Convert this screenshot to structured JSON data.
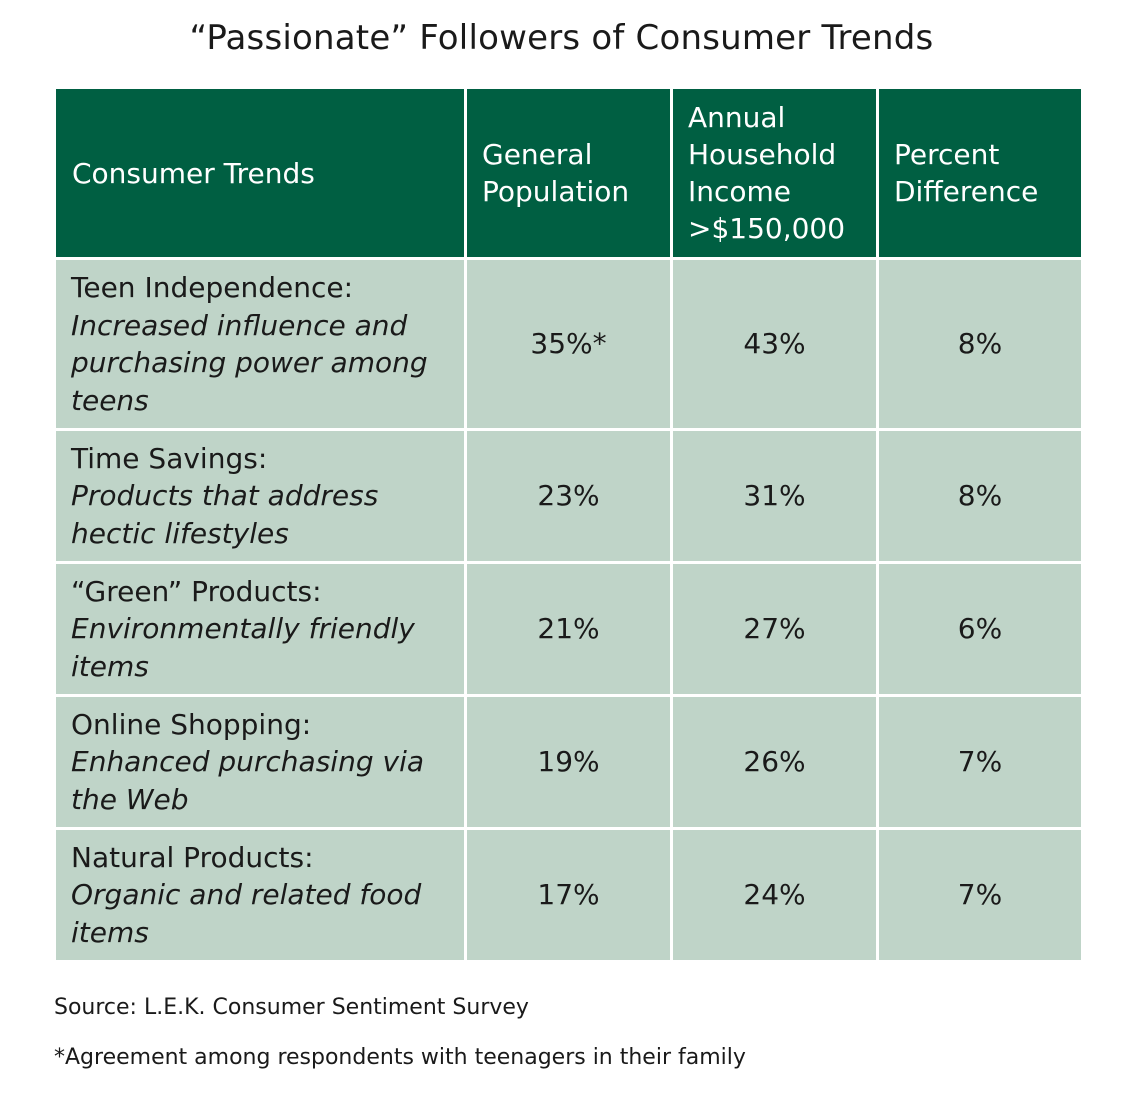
{
  "title": "“Passionate” Followers of Consumer Trends",
  "table": {
    "headers": [
      "Consumer Trends",
      "General Population",
      "Annual Household Income >$150,000",
      "Percent Difference"
    ],
    "rows": [
      {
        "trend": "Teen Independence:",
        "description": "Increased influence and purchasing power among teens",
        "general_population": "35%*",
        "household_income_150k": "43%",
        "percent_difference": "8%"
      },
      {
        "trend": "Time Savings:",
        "description": "Products that address hectic lifestyles",
        "general_population": "23%",
        "household_income_150k": "31%",
        "percent_difference": "8%"
      },
      {
        "trend": "“Green” Products:",
        "description": "Environmentally friendly items",
        "general_population": "21%",
        "household_income_150k": "27%",
        "percent_difference": "6%"
      },
      {
        "trend": "Online Shopping:",
        "description": "Enhanced purchasing via the Web",
        "general_population": "19%",
        "household_income_150k": "26%",
        "percent_difference": "7%"
      },
      {
        "trend": "Natural Products:",
        "description": "Organic and related food items",
        "general_population": "17%",
        "household_income_150k": "24%",
        "percent_difference": "7%"
      }
    ]
  },
  "source": "Source: L.E.K. Consumer Sentiment Survey",
  "footnote": "*Agreement among respondents with teenagers in their family",
  "colors": {
    "header_background": "#005f42",
    "body_background": "#bfd4c8",
    "header_text": "#ffffff"
  }
}
